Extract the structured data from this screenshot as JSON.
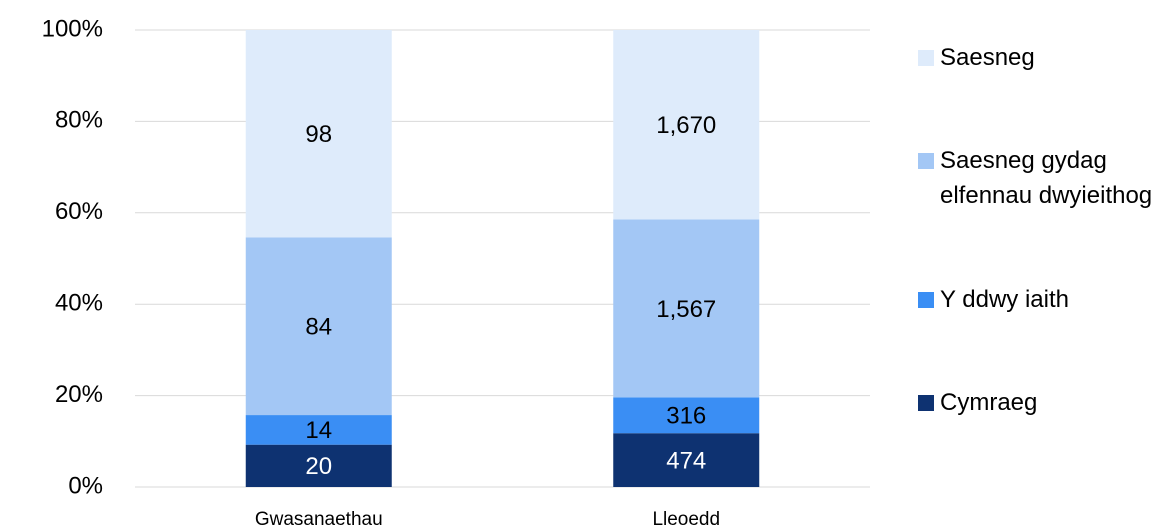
{
  "chart_data": {
    "type": "bar",
    "stack": "percent",
    "categories": [
      "Gwasanaethau",
      "Lleoedd"
    ],
    "series": [
      {
        "name": "Cymraeg",
        "color": "#0e3271",
        "values": [
          20,
          474
        ]
      },
      {
        "name": "Y ddwy iaith",
        "color": "#3a8ef4",
        "values": [
          14,
          316
        ]
      },
      {
        "name": "Saesneg gydag elfennau dwyieithog",
        "color": "#a3c7f5",
        "values": [
          84,
          1567
        ],
        "value_labels": [
          "84",
          "1,567"
        ]
      },
      {
        "name": "Saesneg",
        "color": "#deebfb",
        "values": [
          98,
          1670
        ],
        "value_labels": [
          "98",
          "1,670"
        ]
      }
    ],
    "ylim": [
      0,
      100
    ],
    "yticks": [
      {
        "value": 0,
        "label": "0%"
      },
      {
        "value": 20,
        "label": "20%"
      },
      {
        "value": 40,
        "label": "40%"
      },
      {
        "value": 60,
        "label": "60%"
      },
      {
        "value": 80,
        "label": "80%"
      },
      {
        "value": 100,
        "label": "100%"
      }
    ],
    "grid": true,
    "legend": "right"
  }
}
